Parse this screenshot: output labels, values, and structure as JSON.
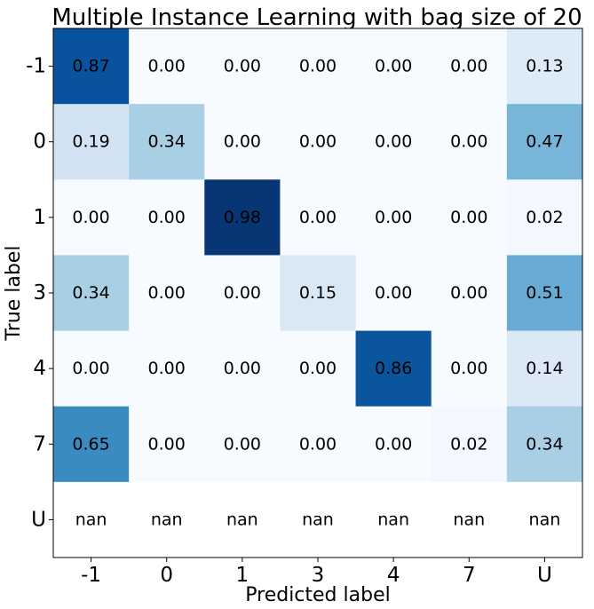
{
  "chart_data": {
    "type": "heatmap",
    "title": "Multiple Instance Learning with bag size of 20",
    "xlabel": "Predicted label",
    "ylabel": "True label",
    "x_categories": [
      "-1",
      "0",
      "1",
      "3",
      "4",
      "7",
      "U"
    ],
    "y_categories": [
      "-1",
      "0",
      "1",
      "3",
      "4",
      "7",
      "U"
    ],
    "values": [
      [
        0.87,
        0.0,
        0.0,
        0.0,
        0.0,
        0.0,
        0.13
      ],
      [
        0.19,
        0.34,
        0.0,
        0.0,
        0.0,
        0.0,
        0.47
      ],
      [
        0.0,
        0.0,
        0.98,
        0.0,
        0.0,
        0.0,
        0.02
      ],
      [
        0.34,
        0.0,
        0.0,
        0.15,
        0.0,
        0.0,
        0.51
      ],
      [
        0.0,
        0.0,
        0.0,
        0.0,
        0.86,
        0.0,
        0.14
      ],
      [
        0.65,
        0.0,
        0.0,
        0.0,
        0.0,
        0.02,
        0.34
      ],
      [
        null,
        null,
        null,
        null,
        null,
        null,
        null
      ]
    ],
    "labels": [
      [
        "0.87",
        "0.00",
        "0.00",
        "0.00",
        "0.00",
        "0.00",
        "0.13"
      ],
      [
        "0.19",
        "0.34",
        "0.00",
        "0.00",
        "0.00",
        "0.00",
        "0.47"
      ],
      [
        "0.00",
        "0.00",
        "0.98",
        "0.00",
        "0.00",
        "0.00",
        "0.02"
      ],
      [
        "0.34",
        "0.00",
        "0.00",
        "0.15",
        "0.00",
        "0.00",
        "0.51"
      ],
      [
        "0.00",
        "0.00",
        "0.00",
        "0.00",
        "0.86",
        "0.00",
        "0.14"
      ],
      [
        "0.65",
        "0.00",
        "0.00",
        "0.00",
        "0.00",
        "0.02",
        "0.34"
      ],
      [
        "nan",
        "nan",
        "nan",
        "nan",
        "nan",
        "nan",
        "nan"
      ]
    ],
    "colormap": "Blues",
    "vmin": 0,
    "vmax": 1,
    "grid": false
  }
}
